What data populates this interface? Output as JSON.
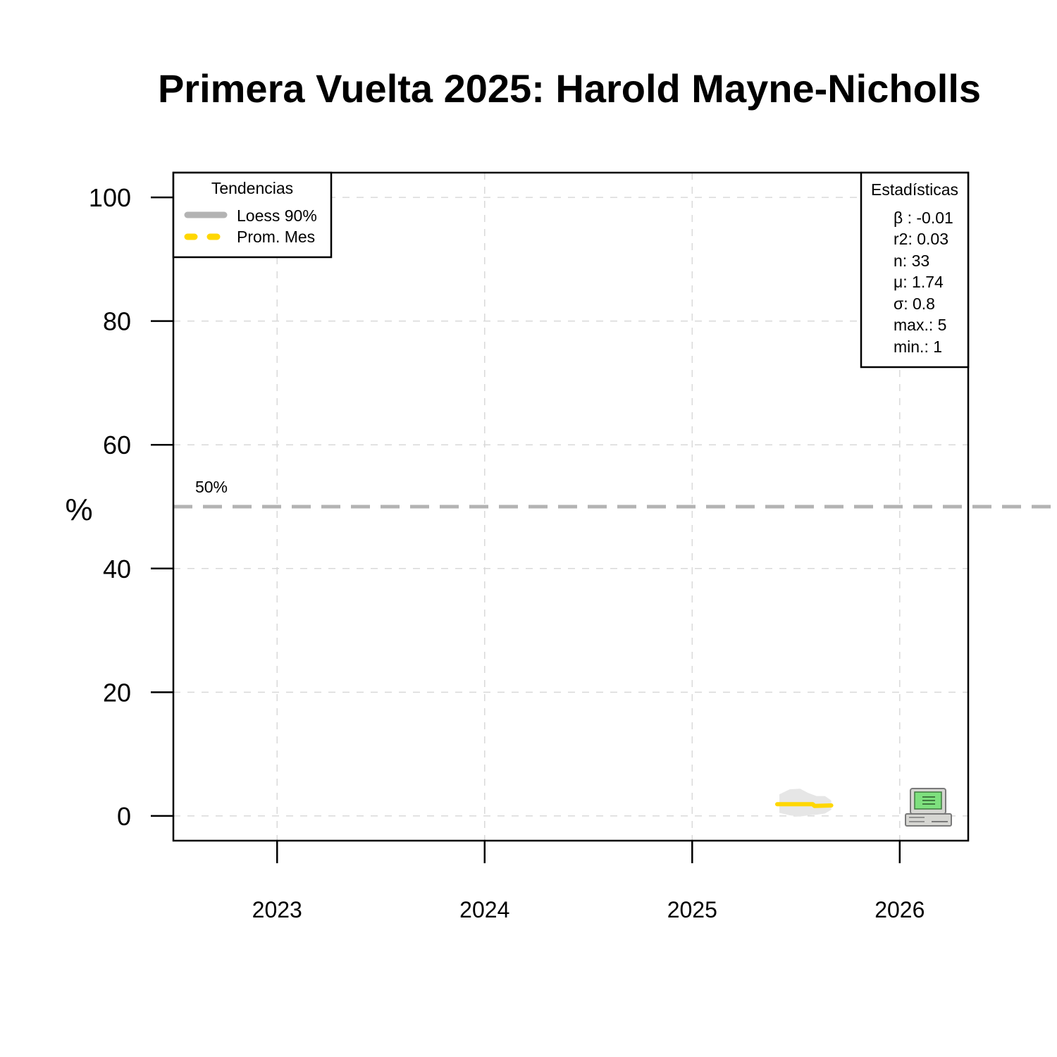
{
  "chart_data": {
    "type": "line",
    "title": "Primera Vuelta 2025: Harold Mayne-Nicholls",
    "ylabel": "%",
    "xlabel": "",
    "xlim": [
      2022.5,
      2026.33
    ],
    "ylim": [
      -4,
      104
    ],
    "x_ticks": [
      2023,
      2024,
      2025,
      2026
    ],
    "x_tick_labels": [
      "2023",
      "2024",
      "2025",
      "2026"
    ],
    "y_ticks": [
      0,
      20,
      40,
      60,
      80,
      100
    ],
    "y_tick_labels": [
      "0",
      "20",
      "40",
      "60",
      "80",
      "100"
    ],
    "grid": true,
    "reference_line": {
      "y": 50,
      "label": "50%",
      "color": "#b3b3b3"
    },
    "series": [
      {
        "name": "Prom. Mes",
        "color": "#ffd700",
        "x": [
          2025.41,
          2025.58,
          2025.59,
          2025.67
        ],
        "y": [
          1.9,
          1.9,
          1.6,
          1.7
        ]
      }
    ],
    "loess_band": {
      "color": "#e6e6e6",
      "x": [
        2025.42,
        2025.47,
        2025.52,
        2025.56,
        2025.6,
        2025.64,
        2025.67
      ],
      "upper": [
        3.5,
        4.3,
        4.4,
        3.7,
        3.2,
        3.2,
        2.5
      ],
      "lower": [
        0.5,
        0.1,
        -0.1,
        0.1,
        0.2,
        0.4,
        1.0
      ]
    },
    "legend": {
      "title": "Tendencias",
      "position": "top-left",
      "items": [
        {
          "label": "Loess 90%",
          "color": "#b3b3b3",
          "style": "solid"
        },
        {
          "label": "Prom. Mes",
          "color": "#ffd700",
          "style": "dashed"
        }
      ]
    },
    "stats": {
      "title": "Estadísticas",
      "position": "top-right",
      "lines": [
        "β : -0.01",
        "r2: 0.03",
        "n: 33",
        "μ: 1.74",
        "σ: 0.8",
        "max.: 5",
        "min.: 1"
      ]
    },
    "source_icon": "computer-icon"
  }
}
